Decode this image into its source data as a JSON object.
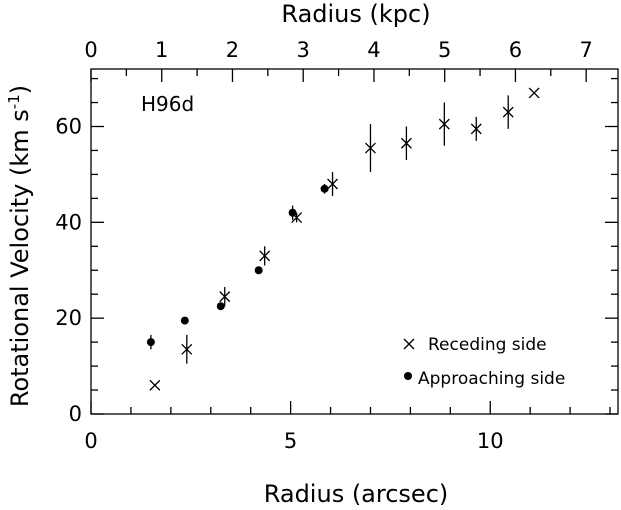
{
  "chart_data": {
    "type": "scatter",
    "panel_label": "H96d",
    "xlabel": "Radius (arcsec)",
    "ylabel": "Rotational Velocity (km s",
    "ylabel_superscript": "-1",
    "ylabel_close": ")",
    "x2label": "Radius (kpc)",
    "xlim": [
      0,
      13.2
    ],
    "ylim": [
      0,
      72
    ],
    "x2lim": [
      0,
      7.45
    ],
    "x_ticks": [
      "0",
      "5",
      "10"
    ],
    "y_ticks": [
      "0",
      "20",
      "40",
      "60"
    ],
    "x2_ticks": [
      "0",
      "1",
      "2",
      "3",
      "4",
      "5",
      "6",
      "7"
    ],
    "legend_position": "bottom-right",
    "grid": false,
    "series": [
      {
        "name": "Receding side",
        "marker": "x",
        "points": [
          {
            "x": 1.6,
            "y": 6,
            "err": 0
          },
          {
            "x": 2.4,
            "y": 13.5,
            "err": 3
          },
          {
            "x": 3.35,
            "y": 24.5,
            "err": 2
          },
          {
            "x": 4.35,
            "y": 33,
            "err": 2
          },
          {
            "x": 5.15,
            "y": 41,
            "err": 1
          },
          {
            "x": 6.05,
            "y": 48,
            "err": 2.5
          },
          {
            "x": 7.0,
            "y": 55.5,
            "err": 5
          },
          {
            "x": 7.9,
            "y": 56.5,
            "err": 3.5
          },
          {
            "x": 8.85,
            "y": 60.5,
            "err": 4.5
          },
          {
            "x": 9.65,
            "y": 59.5,
            "err": 2.5
          },
          {
            "x": 10.45,
            "y": 63,
            "err": 3.5
          },
          {
            "x": 11.1,
            "y": 67,
            "err": 0
          }
        ]
      },
      {
        "name": "Approaching side",
        "marker": "dot",
        "points": [
          {
            "x": 1.5,
            "y": 15,
            "err": 1.5
          },
          {
            "x": 2.35,
            "y": 19.5,
            "err": 0
          },
          {
            "x": 3.25,
            "y": 22.5,
            "err": 0
          },
          {
            "x": 4.2,
            "y": 30,
            "err": 0
          },
          {
            "x": 5.05,
            "y": 42,
            "err": 1.5
          },
          {
            "x": 5.85,
            "y": 47,
            "err": 1
          }
        ]
      }
    ]
  }
}
